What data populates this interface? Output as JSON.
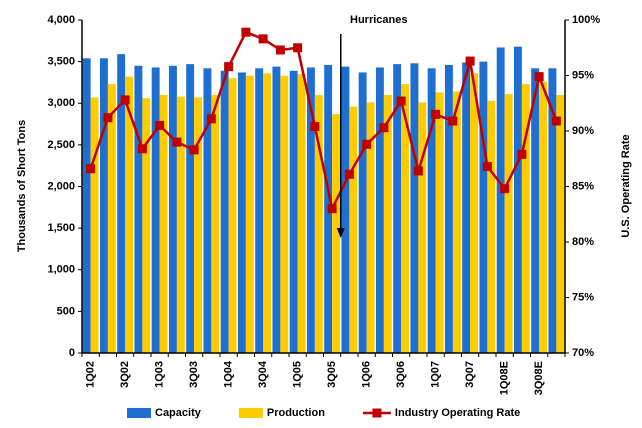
{
  "chart_data": {
    "type": "bar_line",
    "categories": [
      "1Q02",
      null,
      "3Q02",
      null,
      "1Q03",
      null,
      "3Q03",
      null,
      "1Q04",
      null,
      "3Q04",
      null,
      "1Q05",
      null,
      "3Q05",
      null,
      "1Q06",
      null,
      "3Q06",
      null,
      "1Q07",
      null,
      "3Q07",
      null,
      "1Q08E",
      null,
      "3Q08E",
      null
    ],
    "series": [
      {
        "name": "Capacity",
        "color": "#1f6fd0",
        "type": "bar",
        "values": [
          3540,
          3540,
          3590,
          3450,
          3430,
          3450,
          3470,
          3420,
          3390,
          3370,
          3420,
          3440,
          3390,
          3430,
          3460,
          3440,
          3370,
          3430,
          3470,
          3480,
          3420,
          3460,
          3490,
          3500,
          3670,
          3680,
          3420,
          3420
        ]
      },
      {
        "name": "Production",
        "color": "#ffcc00",
        "type": "bar",
        "values": [
          3070,
          3230,
          3320,
          3060,
          3100,
          3080,
          3070,
          3100,
          3300,
          3330,
          3360,
          3330,
          3350,
          3100,
          2870,
          2960,
          3010,
          3100,
          3230,
          3010,
          3130,
          3140,
          3360,
          3030,
          3110,
          3230,
          3260,
          3100
        ]
      },
      {
        "name": "Industry Operating Rate",
        "color": "#c00000",
        "type": "line",
        "axis": "y2",
        "values": [
          86.6,
          91.2,
          92.8,
          88.4,
          90.5,
          89.0,
          88.3,
          91.1,
          95.8,
          98.9,
          98.3,
          97.3,
          97.5,
          90.4,
          83.0,
          86.1,
          88.8,
          90.3,
          92.7,
          86.4,
          91.5,
          90.9,
          96.3,
          86.8,
          84.8,
          87.9,
          94.9,
          90.9
        ]
      }
    ],
    "ylabel": "Thousands of Short Tons",
    "y2label": "U.S. Operating Rate",
    "ylim": [
      0,
      4000
    ],
    "yticks": [
      0,
      500,
      {
        "value": 1000,
        "label": "1,000"
      },
      {
        "value": 1500,
        "label": "1,500"
      },
      {
        "value": 2000,
        "label": "2,000"
      },
      {
        "value": 2500,
        "label": "2,500"
      },
      {
        "value": 3000,
        "label": "3,000"
      },
      {
        "value": 3500,
        "label": "3,500"
      },
      {
        "value": 4000,
        "label": "4,000"
      }
    ],
    "y2lim": [
      70,
      100
    ],
    "y2ticks": [
      {
        "value": 70,
        "label": "70%"
      },
      {
        "value": 75,
        "label": "75%"
      },
      {
        "value": 80,
        "label": "80%"
      },
      {
        "value": 85,
        "label": "85%"
      },
      {
        "value": 90,
        "label": "90%"
      },
      {
        "value": 95,
        "label": "95%"
      },
      {
        "value": 100,
        "label": "100%"
      }
    ],
    "annotations": [
      {
        "text": "Hurricanes",
        "category": "3Q05"
      }
    ],
    "grid": false,
    "legend": "bottom"
  }
}
